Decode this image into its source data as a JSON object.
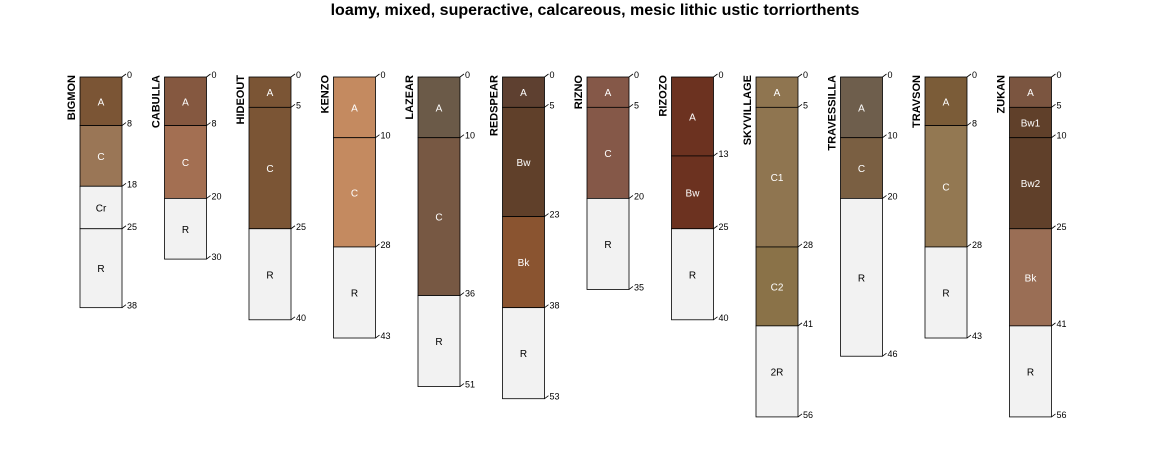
{
  "title": "loamy, mixed, superactive, calcareous, mesic lithic ustic torriorthents",
  "profiles": [
    {
      "name": "BIGMON",
      "horizons": [
        {
          "name": "A",
          "top": 0,
          "bottom": 8,
          "color": "#7b5535"
        },
        {
          "name": "C",
          "top": 8,
          "bottom": 18,
          "color": "#9a7656"
        },
        {
          "name": "Cr",
          "top": 18,
          "bottom": 25,
          "color": "#f2f2f2"
        },
        {
          "name": "R",
          "top": 25,
          "bottom": 38,
          "color": "#f2f2f2"
        }
      ]
    },
    {
      "name": "CABULLA",
      "horizons": [
        {
          "name": "A",
          "top": 0,
          "bottom": 8,
          "color": "#855840"
        },
        {
          "name": "C",
          "top": 8,
          "bottom": 20,
          "color": "#a36f52"
        },
        {
          "name": "R",
          "top": 20,
          "bottom": 30,
          "color": "#f2f2f2"
        }
      ]
    },
    {
      "name": "HIDEOUT",
      "horizons": [
        {
          "name": "A",
          "top": 0,
          "bottom": 5,
          "color": "#7b5535"
        },
        {
          "name": "C",
          "top": 5,
          "bottom": 25,
          "color": "#7b5535"
        },
        {
          "name": "R",
          "top": 25,
          "bottom": 40,
          "color": "#f2f2f2"
        }
      ]
    },
    {
      "name": "KENZO",
      "horizons": [
        {
          "name": "A",
          "top": 0,
          "bottom": 10,
          "color": "#c48a60"
        },
        {
          "name": "C",
          "top": 10,
          "bottom": 28,
          "color": "#c48a60"
        },
        {
          "name": "R",
          "top": 28,
          "bottom": 43,
          "color": "#f2f2f2"
        }
      ]
    },
    {
      "name": "LAZEAR",
      "horizons": [
        {
          "name": "A",
          "top": 0,
          "bottom": 10,
          "color": "#6b5a48"
        },
        {
          "name": "C",
          "top": 10,
          "bottom": 36,
          "color": "#775843"
        },
        {
          "name": "R",
          "top": 36,
          "bottom": 51,
          "color": "#f2f2f2"
        }
      ]
    },
    {
      "name": "REDSPEAR",
      "horizons": [
        {
          "name": "A",
          "top": 0,
          "bottom": 5,
          "color": "#5e4030"
        },
        {
          "name": "Bw",
          "top": 5,
          "bottom": 23,
          "color": "#60402a"
        },
        {
          "name": "Bk",
          "top": 23,
          "bottom": 38,
          "color": "#8a5430"
        },
        {
          "name": "R",
          "top": 38,
          "bottom": 53,
          "color": "#f2f2f2"
        }
      ]
    },
    {
      "name": "RIZNO",
      "horizons": [
        {
          "name": "A",
          "top": 0,
          "bottom": 5,
          "color": "#855848"
        },
        {
          "name": "C",
          "top": 5,
          "bottom": 20,
          "color": "#855848"
        },
        {
          "name": "R",
          "top": 20,
          "bottom": 35,
          "color": "#f2f2f2"
        }
      ]
    },
    {
      "name": "RIZOZO",
      "horizons": [
        {
          "name": "A",
          "top": 0,
          "bottom": 13,
          "color": "#6c3220"
        },
        {
          "name": "Bw",
          "top": 13,
          "bottom": 25,
          "color": "#6c3220"
        },
        {
          "name": "R",
          "top": 25,
          "bottom": 40,
          "color": "#f2f2f2"
        }
      ]
    },
    {
      "name": "SKYVILLAGE",
      "horizons": [
        {
          "name": "A",
          "top": 0,
          "bottom": 5,
          "color": "#8f7550"
        },
        {
          "name": "C1",
          "top": 5,
          "bottom": 28,
          "color": "#8f7550"
        },
        {
          "name": "C2",
          "top": 28,
          "bottom": 41,
          "color": "#8a7248"
        },
        {
          "name": "2R",
          "top": 41,
          "bottom": 56,
          "color": "#f2f2f2"
        }
      ]
    },
    {
      "name": "TRAVESSILLA",
      "horizons": [
        {
          "name": "A",
          "top": 0,
          "bottom": 10,
          "color": "#6e5e4c"
        },
        {
          "name": "C",
          "top": 10,
          "bottom": 20,
          "color": "#7a5f42"
        },
        {
          "name": "R",
          "top": 20,
          "bottom": 46,
          "color": "#f2f2f2"
        }
      ]
    },
    {
      "name": "TRAVSON",
      "horizons": [
        {
          "name": "A",
          "top": 0,
          "bottom": 8,
          "color": "#7b5c38"
        },
        {
          "name": "C",
          "top": 8,
          "bottom": 28,
          "color": "#937852"
        },
        {
          "name": "R",
          "top": 28,
          "bottom": 43,
          "color": "#f2f2f2"
        }
      ]
    },
    {
      "name": "ZUKAN",
      "horizons": [
        {
          "name": "A",
          "top": 0,
          "bottom": 5,
          "color": "#7b5540"
        },
        {
          "name": "Bw1",
          "top": 5,
          "bottom": 10,
          "color": "#60402a"
        },
        {
          "name": "Bw2",
          "top": 10,
          "bottom": 25,
          "color": "#60402a"
        },
        {
          "name": "Bk",
          "top": 25,
          "bottom": 41,
          "color": "#9a6e55"
        },
        {
          "name": "R",
          "top": 41,
          "bottom": 56,
          "color": "#f2f2f2"
        }
      ]
    }
  ]
}
